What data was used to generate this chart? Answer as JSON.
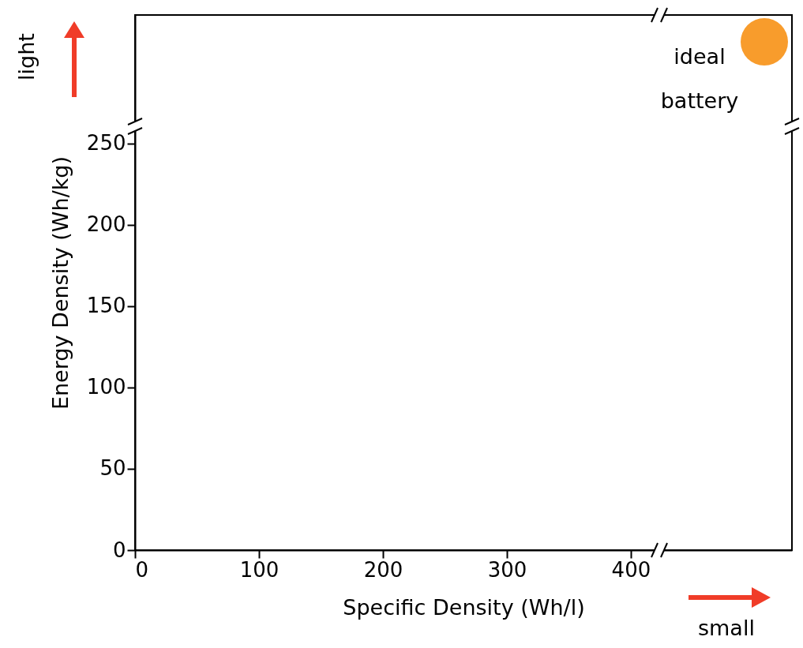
{
  "chart_data": {
    "type": "scatter",
    "xlabel": "Specific Density (Wh/l)",
    "ylabel": "Energy Density (Wh/kg)",
    "xlim": [
      0,
      530
    ],
    "ylim": [
      0,
      329
    ],
    "xticks": [
      0,
      100,
      200,
      300,
      400
    ],
    "yticks": [
      0,
      50,
      100,
      150,
      200,
      250
    ],
    "grid": false,
    "annotations": [
      "ideal battery",
      "light",
      "small"
    ]
  }
}
